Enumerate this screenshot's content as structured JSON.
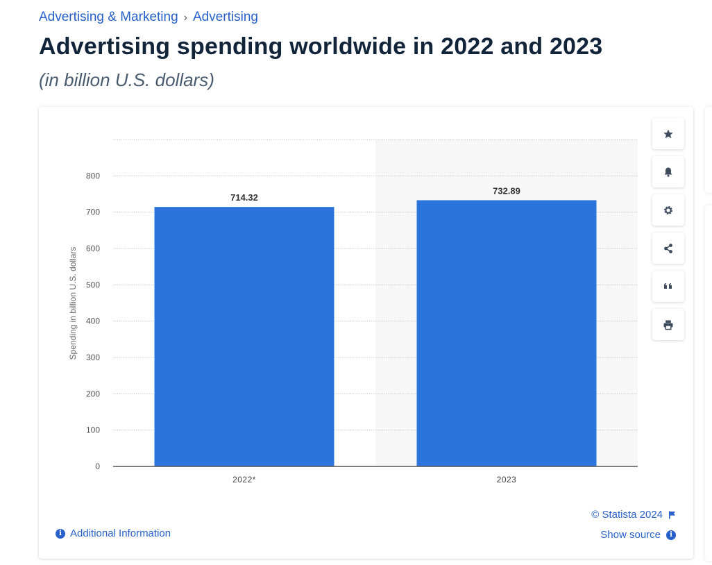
{
  "breadcrumb": {
    "items": [
      "Advertising & Marketing",
      "Advertising"
    ],
    "separator": "›"
  },
  "page": {
    "title": "Advertising spending worldwide in 2022 and 2023",
    "subtitle": "(in billion U.S. dollars)"
  },
  "toolbar": {
    "buttons": [
      {
        "name": "favorite-button",
        "icon": "star-icon"
      },
      {
        "name": "notification-button",
        "icon": "bell-icon"
      },
      {
        "name": "settings-button",
        "icon": "gear-icon"
      },
      {
        "name": "share-button",
        "icon": "share-icon"
      },
      {
        "name": "cite-button",
        "icon": "quote-icon"
      },
      {
        "name": "print-button",
        "icon": "printer-icon"
      }
    ]
  },
  "footer": {
    "additional_info": "Additional Information",
    "copyright": "© Statista 2024",
    "show_source": "Show source"
  },
  "colors": {
    "accent": "#2761c9",
    "bar": "#2b74db",
    "forecast_bg": "#f7f7f8"
  },
  "chart_data": {
    "type": "bar",
    "categories": [
      "2022*",
      "2023"
    ],
    "values": [
      714.32,
      732.89
    ],
    "data_labels": [
      "714.32",
      "732.89"
    ],
    "ylabel": "Spending in billion U.S. dollars",
    "ylim": [
      0,
      900
    ],
    "yticks": [
      0,
      100,
      200,
      300,
      400,
      500,
      600,
      700,
      800
    ],
    "grid": true,
    "legend": "none"
  }
}
